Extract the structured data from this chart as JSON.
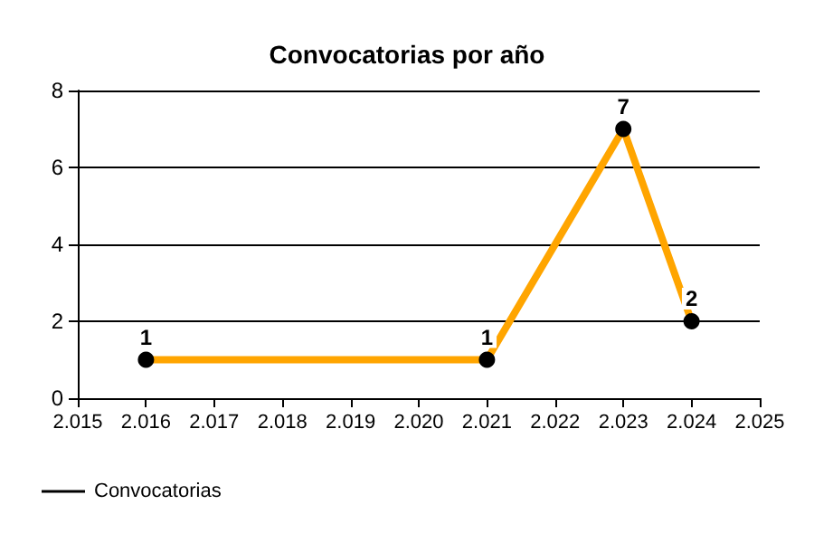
{
  "chart_data": {
    "type": "line",
    "title": "Convocatorias por año",
    "x": [
      2016,
      2021,
      2023,
      2024
    ],
    "series": [
      {
        "name": "Convocatorias",
        "color": "#ffa500",
        "values": [
          1,
          1,
          7,
          2
        ]
      }
    ],
    "xlim": [
      2015,
      2025
    ],
    "xticks": [
      {
        "value": 2015,
        "label": "2.015"
      },
      {
        "value": 2016,
        "label": "2.016"
      },
      {
        "value": 2017,
        "label": "2.017"
      },
      {
        "value": 2018,
        "label": "2.018"
      },
      {
        "value": 2019,
        "label": "2.019"
      },
      {
        "value": 2020,
        "label": "2.020"
      },
      {
        "value": 2021,
        "label": "2.021"
      },
      {
        "value": 2022,
        "label": "2.022"
      },
      {
        "value": 2023,
        "label": "2.023"
      },
      {
        "value": 2024,
        "label": "2.024"
      },
      {
        "value": 2025,
        "label": "2.025"
      }
    ],
    "ylim": [
      0,
      8
    ],
    "yticks": [
      0,
      2,
      4,
      6,
      8
    ],
    "grid": "y",
    "legend": "bottom left",
    "marker": "circle",
    "line_style": "solid",
    "data_labels": true
  }
}
